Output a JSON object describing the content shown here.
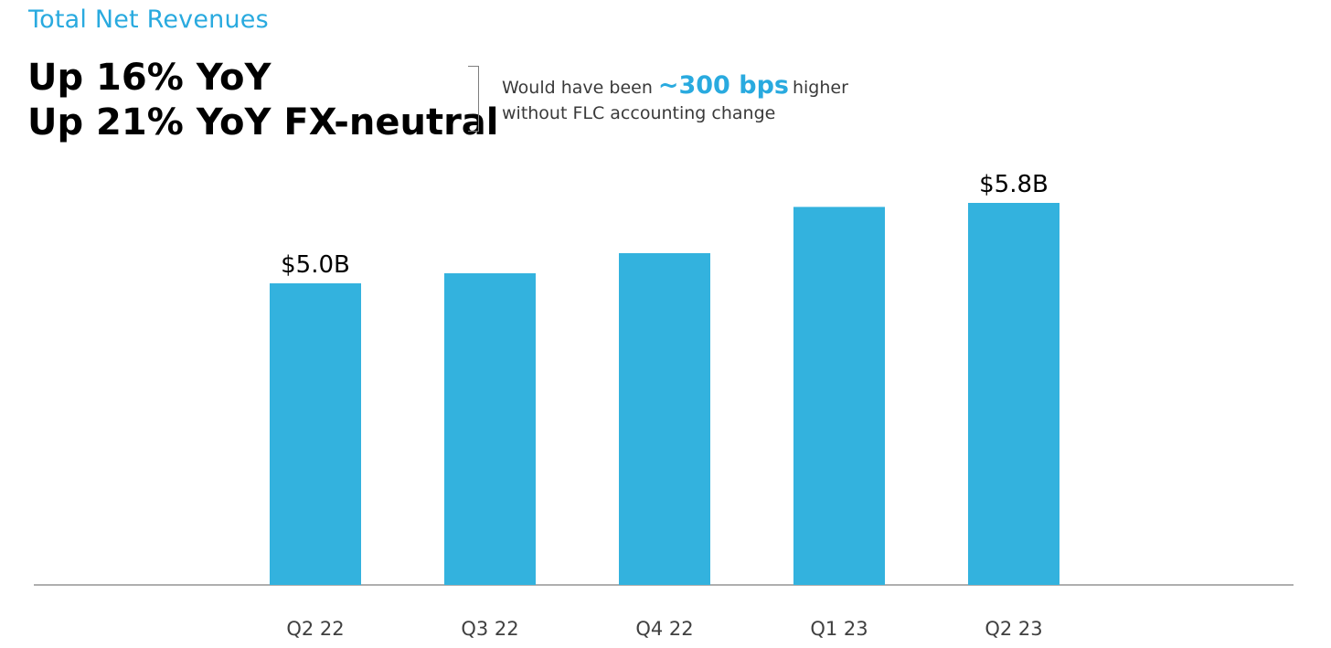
{
  "header": {
    "title": "Total Net Revenues",
    "line1": "Up 16% YoY",
    "line2": "Up 21% YoY FX-neutral"
  },
  "note": {
    "prefix": "Would have been",
    "highlight": "~300 bps",
    "suffix": "higher",
    "line2": "without FLC accounting change"
  },
  "colors": {
    "accent": "#29aadf",
    "bar": "#33b2de",
    "axis": "#7f7f7f"
  },
  "chart_data": {
    "type": "bar",
    "title": "Total Net Revenues",
    "xlabel": "",
    "ylabel": "",
    "unit": "$B",
    "categories": [
      "Q2 22",
      "Q3 22",
      "Q4 22",
      "Q1 23",
      "Q2 23"
    ],
    "values": [
      5.0,
      5.1,
      5.3,
      5.76,
      5.8
    ],
    "data_labels": [
      "$5.0B",
      "",
      "",
      "",
      "$5.8B"
    ],
    "ylim": [
      2.0,
      6.0
    ],
    "grid": false,
    "legend": "none"
  }
}
